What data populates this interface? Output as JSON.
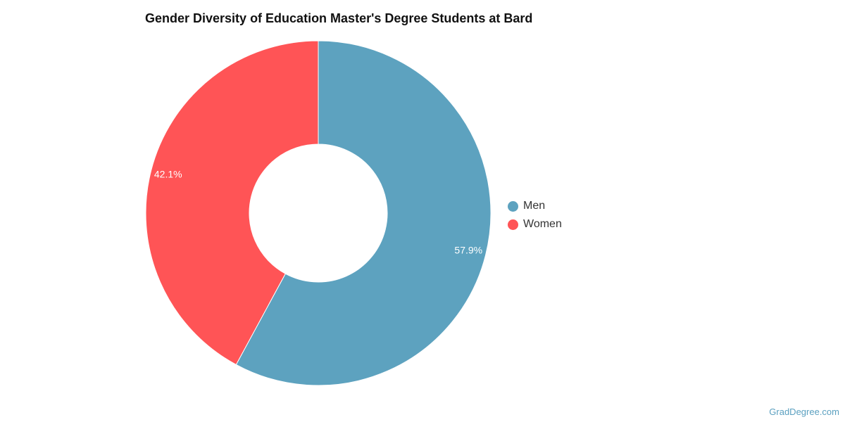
{
  "chart_data": {
    "type": "pie",
    "title": "Gender Diversity of Education Master's Degree Students at Bard",
    "categories": [
      "Men",
      "Women"
    ],
    "values": [
      57.9,
      42.1
    ],
    "value_labels": [
      "57.9%",
      "42.1%"
    ],
    "colors": [
      "#5da2bf",
      "#ff5456"
    ],
    "donut": true,
    "legend": "right"
  },
  "legend": {
    "items": [
      {
        "label": "Men",
        "color": "#5da2bf"
      },
      {
        "label": "Women",
        "color": "#ff5456"
      }
    ]
  },
  "watermark": "GradDegree.com"
}
